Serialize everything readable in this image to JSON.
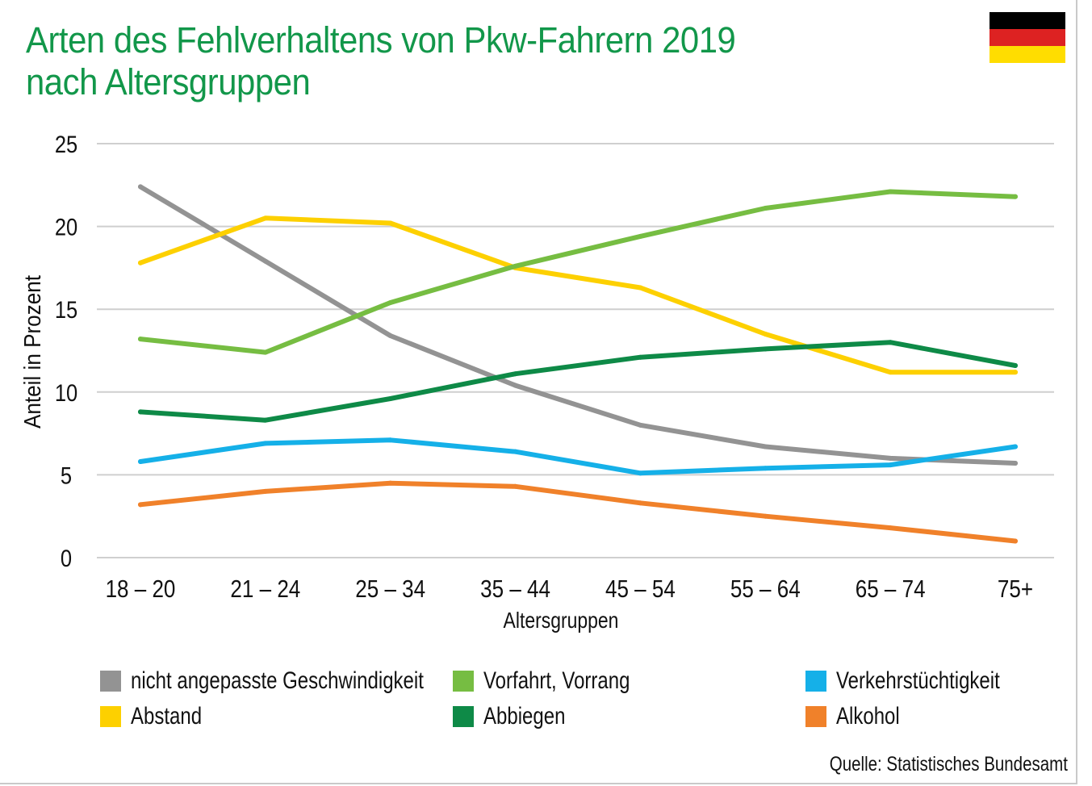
{
  "title_line1": "Arten des Fehlverhaltens von Pkw-Fahrern 2019",
  "title_line2": "nach Altersgruppen",
  "source": "Quelle: Statistisches Bundesamt",
  "flag": {
    "colors": [
      "#000000",
      "#dd2222",
      "#ffdd00"
    ]
  },
  "chart_data": {
    "type": "line",
    "title": "Arten des Fehlverhaltens von Pkw-Fahrern 2019 nach Altersgruppen",
    "xlabel": "Altersgruppen",
    "ylabel": "Anteil in Prozent",
    "ylim": [
      0,
      25
    ],
    "yticks": [
      0,
      5,
      10,
      15,
      20,
      25
    ],
    "grid": true,
    "categories": [
      "18 – 20",
      "21 – 24",
      "25 – 34",
      "35 – 44",
      "45 – 54",
      "55 – 64",
      "65 – 74",
      "75+"
    ],
    "series": [
      {
        "name": "nicht angepasste Geschwindigkeit",
        "color": "#939393",
        "values": [
          22.4,
          17.9,
          13.4,
          10.4,
          8.0,
          6.7,
          6.0,
          5.7
        ]
      },
      {
        "name": "Abstand",
        "color": "#fdd000",
        "values": [
          17.8,
          20.5,
          20.2,
          17.5,
          16.3,
          13.5,
          11.2,
          11.2
        ]
      },
      {
        "name": "Vorfahrt, Vorrang",
        "color": "#76bd42",
        "values": [
          13.2,
          12.4,
          15.4,
          17.6,
          19.4,
          21.1,
          22.1,
          21.8
        ]
      },
      {
        "name": "Abbiegen",
        "color": "#0e8a47",
        "values": [
          8.8,
          8.3,
          9.6,
          11.1,
          12.1,
          12.6,
          13.0,
          11.6
        ]
      },
      {
        "name": "Verkehrstüchtigkeit",
        "color": "#15b0e8",
        "values": [
          5.8,
          6.9,
          7.1,
          6.4,
          5.1,
          5.4,
          5.6,
          6.7
        ]
      },
      {
        "name": "Alkohol",
        "color": "#f0812a",
        "values": [
          3.2,
          4.0,
          4.5,
          4.3,
          3.3,
          2.5,
          1.8,
          1.0
        ]
      }
    ]
  }
}
